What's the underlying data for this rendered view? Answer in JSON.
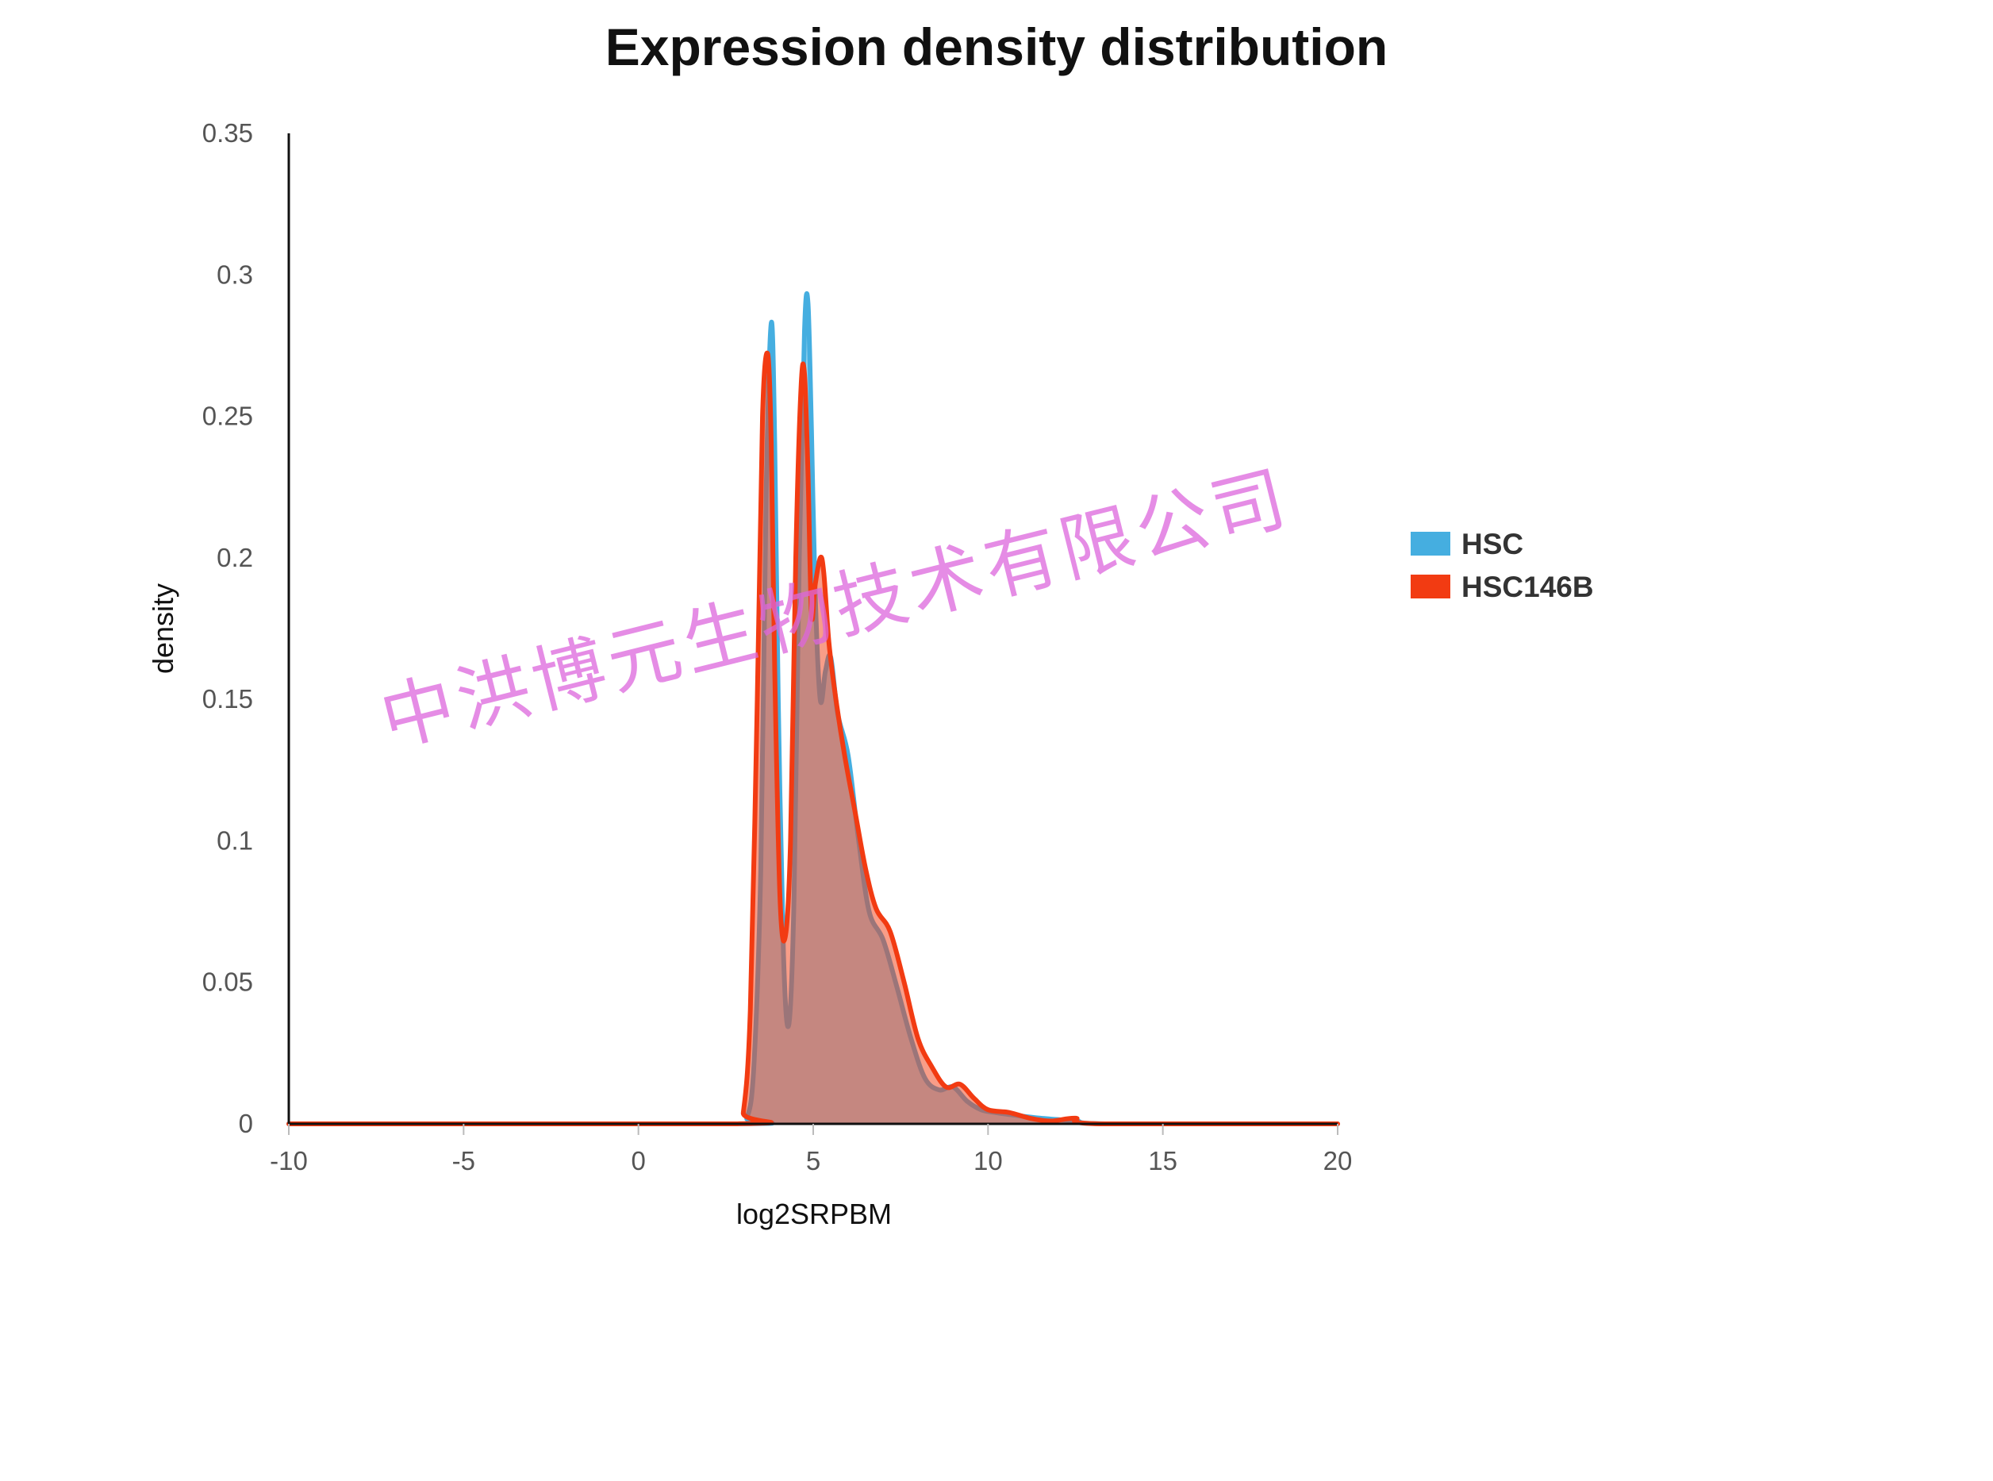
{
  "watermark": "中洪博元生物技术有限公司",
  "chart_data": {
    "type": "area",
    "title": "Expression density distribution",
    "xlabel": "log2SRPBM",
    "ylabel": "density",
    "xlim": [
      -10,
      20
    ],
    "ylim": [
      0,
      0.35
    ],
    "x_ticks": [
      "-10",
      "-5",
      "0",
      "5",
      "10",
      "15",
      "20"
    ],
    "y_ticks": [
      "0",
      "0.05",
      "0.1",
      "0.15",
      "0.2",
      "0.25",
      "0.3",
      "0.35"
    ],
    "grid": false,
    "legend_position": "right",
    "colors": {
      "HSC": "#45aee0",
      "HSC146B": "#f23b12"
    },
    "series": [
      {
        "name": "HSC",
        "color": "#45aee0",
        "x": [
          -10,
          2.8,
          3.1,
          3.3,
          3.5,
          3.65,
          3.8,
          3.9,
          4.0,
          4.15,
          4.3,
          4.45,
          4.6,
          4.75,
          4.85,
          4.95,
          5.05,
          5.2,
          5.35,
          5.5,
          5.7,
          6.0,
          6.3,
          6.6,
          7.0,
          7.4,
          7.8,
          8.2,
          8.6,
          9.0,
          9.4,
          9.8,
          10.2,
          10.8,
          11.5,
          12.5,
          13.5,
          20
        ],
        "y": [
          0,
          0,
          0.002,
          0.02,
          0.09,
          0.22,
          0.283,
          0.24,
          0.15,
          0.06,
          0.035,
          0.08,
          0.2,
          0.28,
          0.29,
          0.245,
          0.19,
          0.15,
          0.16,
          0.165,
          0.145,
          0.13,
          0.1,
          0.075,
          0.065,
          0.048,
          0.03,
          0.016,
          0.012,
          0.013,
          0.008,
          0.005,
          0.004,
          0.003,
          0.002,
          0.001,
          0,
          0
        ]
      },
      {
        "name": "HSC146B",
        "color": "#f23b12",
        "x": [
          -10,
          2.8,
          3.0,
          3.2,
          3.4,
          3.55,
          3.7,
          3.8,
          3.9,
          4.05,
          4.2,
          4.35,
          4.5,
          4.65,
          4.75,
          4.85,
          4.95,
          5.05,
          5.2,
          5.3,
          5.45,
          5.65,
          5.9,
          6.2,
          6.5,
          6.8,
          7.2,
          7.6,
          8.0,
          8.4,
          8.8,
          9.2,
          9.6,
          10.0,
          10.6,
          11.2,
          11.8,
          12.5,
          13.2,
          20
        ],
        "y": [
          0,
          0,
          0.004,
          0.04,
          0.15,
          0.25,
          0.272,
          0.24,
          0.16,
          0.08,
          0.066,
          0.1,
          0.2,
          0.26,
          0.265,
          0.23,
          0.18,
          0.19,
          0.2,
          0.195,
          0.17,
          0.15,
          0.13,
          0.11,
          0.09,
          0.076,
          0.068,
          0.05,
          0.03,
          0.02,
          0.013,
          0.014,
          0.009,
          0.005,
          0.004,
          0.002,
          0.001,
          0.002,
          0,
          0
        ]
      }
    ]
  }
}
